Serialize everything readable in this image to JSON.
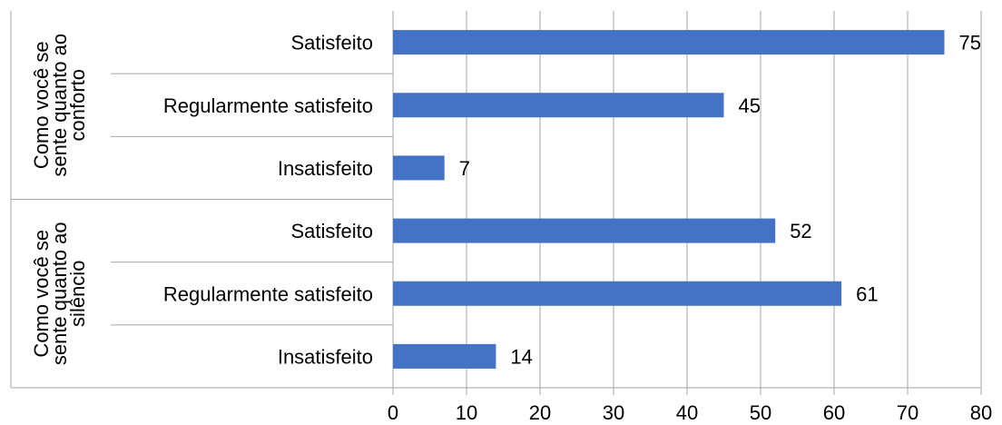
{
  "chart_data": {
    "type": "bar",
    "orientation": "horizontal",
    "title": "",
    "xlabel": "",
    "ylabel": "",
    "xlim": [
      0,
      80
    ],
    "x_ticks": [
      0,
      10,
      20,
      30,
      40,
      50,
      60,
      70,
      80
    ],
    "grid": true,
    "legend": "none",
    "bar_color": "#4472c4",
    "groups": [
      {
        "label_lines": [
          "Como você se",
          "sente quanto ao",
          "conforto"
        ],
        "categories": [
          "Satisfeito",
          "Regularmente satisfeito",
          "Insatisfeito"
        ],
        "values": [
          75,
          45,
          7
        ]
      },
      {
        "label_lines": [
          "Como você se",
          "sente quanto ao",
          "silêncio"
        ],
        "categories": [
          "Satisfeito",
          "Regularmente satisfeito",
          "Insatisfeito"
        ],
        "values": [
          52,
          61,
          14
        ]
      }
    ]
  }
}
